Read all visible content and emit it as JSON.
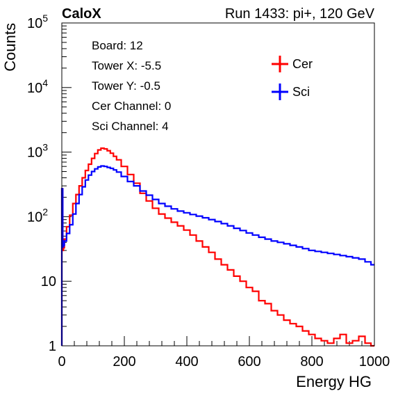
{
  "header": {
    "left": "CaloX",
    "right": "Run 1433: pi+, 120 GeV"
  },
  "info_box": [
    "Board: 12",
    "Tower X: -5.5",
    "Tower Y: -0.5",
    "Cer Channel: 0",
    "Sci Channel: 4"
  ],
  "chart_data": {
    "type": "line",
    "style": "step-histogram",
    "xlabel": "Energy HG",
    "ylabel": "Counts",
    "xlim": [
      0,
      1000
    ],
    "ylim": [
      1,
      100000
    ],
    "yscale": "log",
    "x_ticks": [
      {
        "value": 0,
        "label": "0"
      },
      {
        "value": 200,
        "label": "200"
      },
      {
        "value": 400,
        "label": "400"
      },
      {
        "value": 600,
        "label": "600"
      },
      {
        "value": 800,
        "label": "800"
      },
      {
        "value": 1000,
        "label": "1000"
      }
    ],
    "y_ticks": [
      {
        "value": 1,
        "label": "1"
      },
      {
        "value": 10,
        "label": "10"
      },
      {
        "value": 100,
        "label": "10",
        "exp": "2"
      },
      {
        "value": 1000,
        "label": "10",
        "exp": "3"
      },
      {
        "value": 10000,
        "label": "10",
        "exp": "4"
      },
      {
        "value": 100000,
        "label": "10",
        "exp": "5"
      }
    ],
    "legend_position": "top-right",
    "series": [
      {
        "name": "Cer",
        "color": "#ff0000",
        "points": [
          [
            2,
            270
          ],
          [
            4,
            30
          ],
          [
            6,
            33
          ],
          [
            10,
            45
          ],
          [
            20,
            70
          ],
          [
            30,
            105
          ],
          [
            40,
            160
          ],
          [
            50,
            220
          ],
          [
            60,
            300
          ],
          [
            70,
            400
          ],
          [
            80,
            520
          ],
          [
            90,
            650
          ],
          [
            100,
            800
          ],
          [
            110,
            950
          ],
          [
            120,
            1080
          ],
          [
            130,
            1150
          ],
          [
            140,
            1120
          ],
          [
            150,
            1050
          ],
          [
            160,
            960
          ],
          [
            170,
            860
          ],
          [
            180,
            760
          ],
          [
            200,
            600
          ],
          [
            220,
            450
          ],
          [
            240,
            330
          ],
          [
            260,
            230
          ],
          [
            280,
            175
          ],
          [
            300,
            135
          ],
          [
            320,
            110
          ],
          [
            340,
            95
          ],
          [
            360,
            82
          ],
          [
            380,
            72
          ],
          [
            400,
            62
          ],
          [
            420,
            52
          ],
          [
            440,
            42
          ],
          [
            460,
            34
          ],
          [
            480,
            28
          ],
          [
            500,
            22
          ],
          [
            520,
            18
          ],
          [
            540,
            15
          ],
          [
            560,
            12
          ],
          [
            580,
            10
          ],
          [
            600,
            8
          ],
          [
            620,
            7
          ],
          [
            640,
            5
          ],
          [
            660,
            4.5
          ],
          [
            680,
            3.5
          ],
          [
            700,
            3
          ],
          [
            720,
            2.5
          ],
          [
            740,
            2.2
          ],
          [
            760,
            2
          ],
          [
            780,
            1.7
          ],
          [
            800,
            1.5
          ],
          [
            820,
            1.3
          ],
          [
            840,
            1.2
          ],
          [
            860,
            1.1
          ],
          [
            880,
            1.3
          ],
          [
            900,
            1.5
          ],
          [
            920,
            1.1
          ],
          [
            940,
            1.2
          ],
          [
            960,
            1.4
          ],
          [
            980,
            1.1
          ],
          [
            998,
            1
          ]
        ]
      },
      {
        "name": "Sci",
        "color": "#0000ff",
        "points": [
          [
            2,
            270
          ],
          [
            4,
            34
          ],
          [
            6,
            36
          ],
          [
            10,
            42
          ],
          [
            20,
            55
          ],
          [
            30,
            75
          ],
          [
            40,
            110
          ],
          [
            50,
            160
          ],
          [
            60,
            220
          ],
          [
            70,
            290
          ],
          [
            80,
            370
          ],
          [
            90,
            440
          ],
          [
            100,
            500
          ],
          [
            110,
            550
          ],
          [
            120,
            590
          ],
          [
            130,
            610
          ],
          [
            140,
            600
          ],
          [
            150,
            580
          ],
          [
            160,
            560
          ],
          [
            170,
            530
          ],
          [
            180,
            490
          ],
          [
            200,
            420
          ],
          [
            220,
            350
          ],
          [
            240,
            300
          ],
          [
            260,
            250
          ],
          [
            280,
            215
          ],
          [
            300,
            185
          ],
          [
            320,
            160
          ],
          [
            340,
            145
          ],
          [
            360,
            132
          ],
          [
            380,
            122
          ],
          [
            400,
            115
          ],
          [
            420,
            108
          ],
          [
            440,
            102
          ],
          [
            460,
            96
          ],
          [
            480,
            90
          ],
          [
            500,
            84
          ],
          [
            520,
            78
          ],
          [
            540,
            72
          ],
          [
            560,
            66
          ],
          [
            580,
            61
          ],
          [
            600,
            56
          ],
          [
            620,
            52
          ],
          [
            640,
            48
          ],
          [
            660,
            45
          ],
          [
            680,
            42
          ],
          [
            700,
            40
          ],
          [
            720,
            38
          ],
          [
            740,
            36
          ],
          [
            760,
            34
          ],
          [
            780,
            32
          ],
          [
            800,
            30
          ],
          [
            820,
            29
          ],
          [
            840,
            28
          ],
          [
            860,
            27
          ],
          [
            880,
            26
          ],
          [
            900,
            25
          ],
          [
            920,
            24
          ],
          [
            940,
            23
          ],
          [
            960,
            22
          ],
          [
            980,
            20
          ],
          [
            998,
            18
          ]
        ]
      }
    ]
  }
}
